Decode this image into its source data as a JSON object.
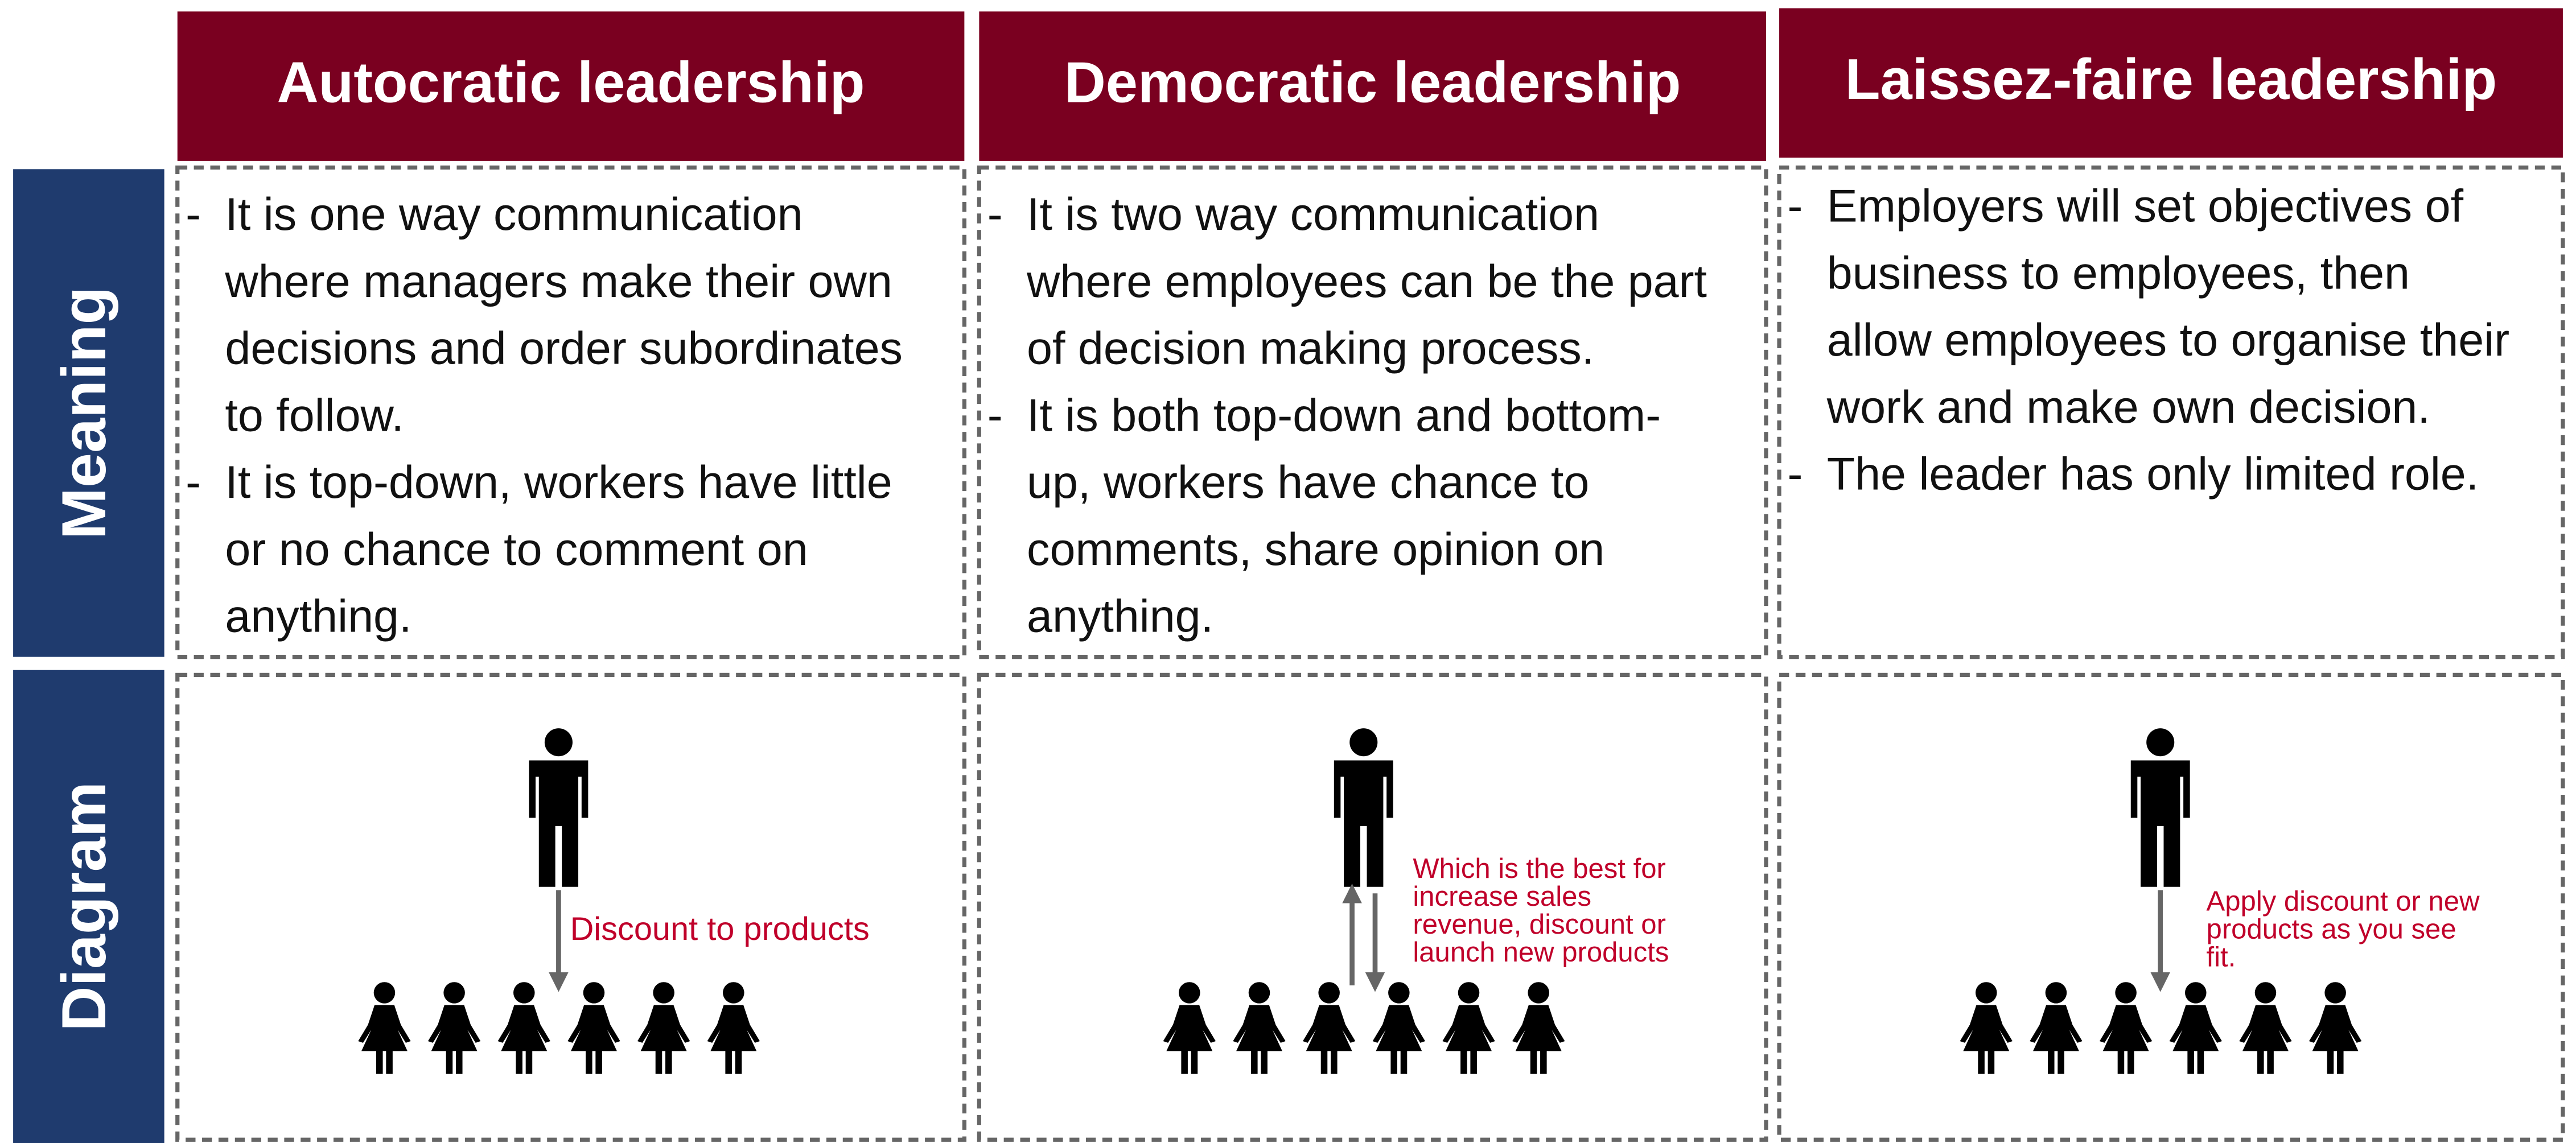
{
  "columns": [
    {
      "title": "Autocratic leadership",
      "meaning": [
        [
          "It is one way communication",
          "where managers make their own",
          "decisions and order subordinates",
          "to follow."
        ],
        [
          "It is top-down, workers have little",
          "or no chance to comment on",
          "anything."
        ]
      ],
      "note": [
        "Discount to products"
      ]
    },
    {
      "title": "Democratic leadership",
      "meaning": [
        [
          "It is two way communication",
          "where employees can be the part",
          "of decision making process."
        ],
        [
          "It is both top-down and bottom-",
          "up, workers have chance to",
          "comments, share opinion on",
          "anything."
        ]
      ],
      "note": [
        "Which is the best for",
        "increase sales",
        "revenue, discount or",
        "launch new products"
      ]
    },
    {
      "title": "Laissez-faire leadership",
      "meaning": [
        [
          "Employers will set objectives of",
          "business to employees, then",
          "allow employees to organise their",
          "work and make own decision."
        ],
        [
          "The leader has only limited role."
        ]
      ],
      "note": [
        "Apply discount or new",
        "products as you see",
        "fit."
      ]
    }
  ],
  "rows": [
    "Meaning",
    "Diagram"
  ]
}
